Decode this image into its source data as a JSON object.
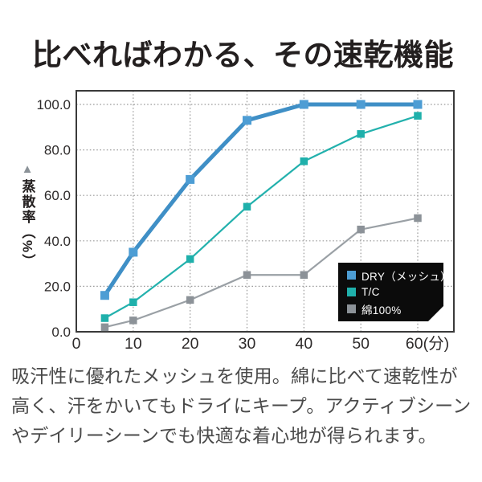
{
  "title": "比べればわかる、その速乾機能",
  "caption": "吸汗性に優れたメッシュを使用。綿に比べて速乾性が高く、汗をかいてもドライにキープ。アクティブシーンやデイリーシーンでも快適な着心地が得られます。",
  "y_axis_marker_icon": "▲",
  "chart_data": {
    "type": "line",
    "x": [
      5,
      10,
      20,
      30,
      40,
      50,
      60
    ],
    "series": [
      {
        "name": "DRY（メッシュ）",
        "values": [
          16,
          35,
          67,
          93,
          100,
          100,
          100
        ],
        "color": "#3f8fc6",
        "marker_color": "#4d9dd4",
        "line_width": 5,
        "marker_size": 11
      },
      {
        "name": "T/C",
        "values": [
          6,
          13,
          32,
          55,
          75,
          87,
          95
        ],
        "color": "#23b1ad",
        "marker_color": "#1fb0ab",
        "line_width": 2.2,
        "marker_size": 9.5
      },
      {
        "name": "綿100%",
        "values": [
          2,
          5,
          14,
          25,
          25,
          45,
          50
        ],
        "color": "#9aa0a5",
        "marker_color": "#8c9298",
        "line_width": 2.2,
        "marker_size": 9.5
      }
    ],
    "x_ticks": [
      {
        "value": 0,
        "label": "0"
      },
      {
        "value": 10,
        "label": "10"
      },
      {
        "value": 20,
        "label": "20"
      },
      {
        "value": 30,
        "label": "30"
      },
      {
        "value": 40,
        "label": "40"
      },
      {
        "value": 50,
        "label": "50"
      },
      {
        "value": 60,
        "label": "60(分)"
      }
    ],
    "y_ticks": [
      {
        "value": 0,
        "label": "0.0"
      },
      {
        "value": 20,
        "label": "20.0"
      },
      {
        "value": 40,
        "label": "40.0"
      },
      {
        "value": 60,
        "label": "60.0"
      },
      {
        "value": 80,
        "label": "80.0"
      },
      {
        "value": 100,
        "label": "100.0"
      }
    ],
    "xlabel": "(分)",
    "ylabel": "蒸散率（%）",
    "xlim": [
      0,
      66
    ],
    "ylim": [
      0,
      106
    ],
    "grid": "dotted",
    "grid_color": "#9b9b9b",
    "axis_color": "#3a3a3a",
    "legend_position": "bottom-right",
    "legend_bg": "#0b0b0b",
    "legend_text_color": "#ffffff"
  }
}
